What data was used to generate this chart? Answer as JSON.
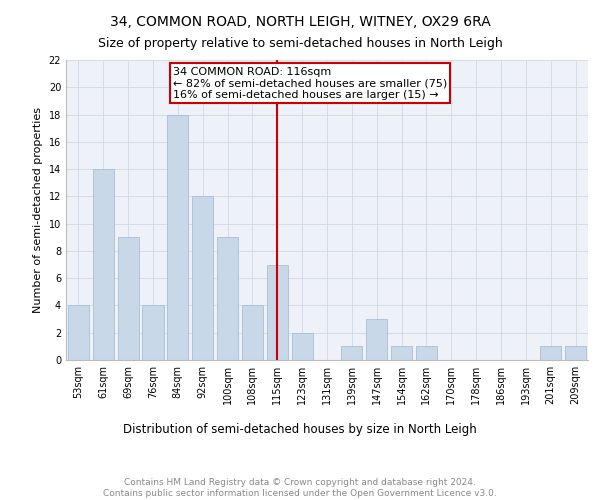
{
  "title": "34, COMMON ROAD, NORTH LEIGH, WITNEY, OX29 6RA",
  "subtitle": "Size of property relative to semi-detached houses in North Leigh",
  "xlabel": "Distribution of semi-detached houses by size in North Leigh",
  "ylabel": "Number of semi-detached properties",
  "categories": [
    "53sqm",
    "61sqm",
    "69sqm",
    "76sqm",
    "84sqm",
    "92sqm",
    "100sqm",
    "108sqm",
    "115sqm",
    "123sqm",
    "131sqm",
    "139sqm",
    "147sqm",
    "154sqm",
    "162sqm",
    "170sqm",
    "178sqm",
    "186sqm",
    "193sqm",
    "201sqm",
    "209sqm"
  ],
  "values": [
    4,
    14,
    9,
    4,
    18,
    12,
    9,
    4,
    7,
    2,
    0,
    1,
    3,
    1,
    1,
    0,
    0,
    0,
    0,
    1,
    1
  ],
  "bar_color": "#c8d8e8",
  "bar_edge_color": "#a0b8d0",
  "vline_x_index": 8,
  "vline_label": "34 COMMON ROAD: 116sqm",
  "annotation_smaller": "← 82% of semi-detached houses are smaller (75)",
  "annotation_larger": "16% of semi-detached houses are larger (15) →",
  "box_color": "#cc0000",
  "ylim": [
    0,
    22
  ],
  "yticks": [
    0,
    2,
    4,
    6,
    8,
    10,
    12,
    14,
    16,
    18,
    20,
    22
  ],
  "grid_color": "#d0d8e8",
  "background_color": "#eef2f8",
  "footer_text": "Contains HM Land Registry data © Crown copyright and database right 2024.\nContains public sector information licensed under the Open Government Licence v3.0.",
  "title_fontsize": 10,
  "subtitle_fontsize": 9,
  "xlabel_fontsize": 8.5,
  "ylabel_fontsize": 8,
  "tick_fontsize": 7,
  "annotation_fontsize": 8,
  "footer_fontsize": 6.5
}
